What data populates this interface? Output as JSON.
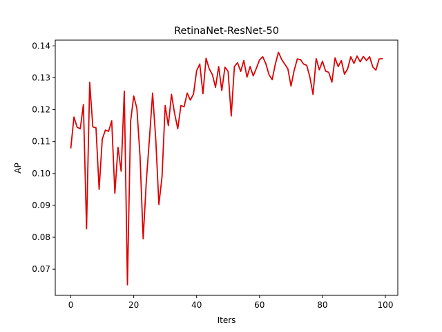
{
  "chart_data": {
    "type": "line",
    "title": "RetinaNet-ResNet-50",
    "xlabel": "Iters",
    "ylabel": "AP",
    "xlim": [
      -4.95,
      103.95
    ],
    "ylim": [
      0.0618,
      0.1418
    ],
    "xticks": [
      0,
      20,
      40,
      60,
      80,
      100
    ],
    "yticks": [
      0.07,
      0.08,
      0.09,
      0.1,
      0.11,
      0.12,
      0.13,
      0.14
    ],
    "ytick_labels": [
      "0.07",
      "0.08",
      "0.09",
      "0.10",
      "0.11",
      "0.12",
      "0.13",
      "0.14"
    ],
    "grid": false,
    "color": "#dd0000",
    "series": [
      {
        "x": [
          0,
          1,
          2,
          3,
          4,
          5,
          6,
          7,
          8,
          9,
          10,
          11,
          12,
          13,
          14,
          15,
          16,
          17,
          18,
          19,
          20,
          21,
          22,
          23,
          24,
          25,
          26,
          27,
          28,
          29,
          30,
          31,
          32,
          33,
          34,
          35,
          36,
          37,
          38,
          39,
          40,
          41,
          42,
          43,
          44,
          45,
          46,
          47,
          48,
          49,
          50,
          51,
          52,
          53,
          54,
          55,
          56,
          57,
          58,
          59,
          60,
          61,
          62,
          63,
          64,
          65,
          66,
          67,
          68,
          69,
          70,
          71,
          72,
          73,
          74,
          75,
          76,
          77,
          78,
          79,
          80,
          81,
          82,
          83,
          84,
          85,
          86,
          87,
          88,
          89,
          90,
          91,
          92,
          93,
          94,
          95,
          96,
          97,
          98,
          99
        ],
        "values": [
          0.108,
          0.1177,
          0.1145,
          0.114,
          0.1216,
          0.0827,
          0.1286,
          0.1146,
          0.1143,
          0.095,
          0.1108,
          0.1136,
          0.1132,
          0.1165,
          0.0938,
          0.1082,
          0.1007,
          0.1258,
          0.0651,
          0.1163,
          0.1243,
          0.1204,
          0.1055,
          0.0795,
          0.0975,
          0.111,
          0.1252,
          0.1108,
          0.0903,
          0.099,
          0.1213,
          0.115,
          0.1248,
          0.1188,
          0.114,
          0.1213,
          0.1209,
          0.1252,
          0.123,
          0.1249,
          0.1322,
          0.1343,
          0.125,
          0.1361,
          0.1328,
          0.131,
          0.127,
          0.1335,
          0.126,
          0.1333,
          0.132,
          0.118,
          0.1335,
          0.1347,
          0.132,
          0.1354,
          0.1302,
          0.1335,
          0.1306,
          0.133,
          0.1356,
          0.1366,
          0.1344,
          0.131,
          0.1294,
          0.1342,
          0.138,
          0.1358,
          0.1343,
          0.1328,
          0.1274,
          0.1323,
          0.1359,
          0.1357,
          0.1343,
          0.1339,
          0.1302,
          0.1248,
          0.136,
          0.1325,
          0.1352,
          0.1321,
          0.1317,
          0.1286,
          0.1362,
          0.1335,
          0.1354,
          0.1311,
          0.1328,
          0.1366,
          0.1345,
          0.1368,
          0.135,
          0.1367,
          0.1354,
          0.1366,
          0.1334,
          0.1324,
          0.1359,
          0.136
        ]
      }
    ]
  }
}
